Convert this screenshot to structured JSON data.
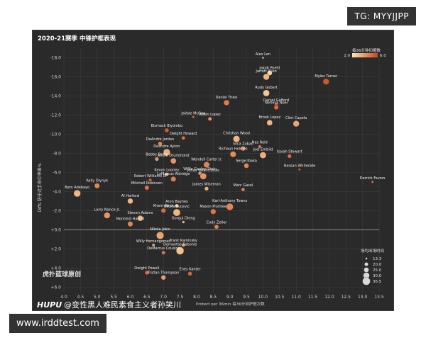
{
  "overlay": {
    "tag": "TG: MYYJJPP",
    "url": "www.irddtest.com"
  },
  "chart_data": {
    "type": "scatter",
    "title": "2020-21赛季 中锋护框表现",
    "xlabel": "Protect per 36min 每36分钟护框次数",
    "ylabel": "Diffs 防守对手命中率差%",
    "xlim": [
      4.0,
      13.5
    ],
    "ylim": [
      6.5,
      -19.0
    ],
    "x_ticks": [
      "4.0",
      "4.5",
      "5.0",
      "5.5",
      "6.0",
      "6.5",
      "7.0",
      "7.5",
      "8.0",
      "8.5",
      "9.0",
      "9.5",
      "10.0",
      "10.5",
      "11.0",
      "11.5",
      "12.0",
      "12.5",
      "13.0",
      "13.5"
    ],
    "y_ticks": [
      "-18.0",
      "-16.0",
      "-14.0",
      "-12.0",
      "-10.0",
      "-8.0",
      "-6.0",
      "-4.0",
      "-2.0",
      "+0.0",
      "+2.0",
      "+4.0",
      "+6.0"
    ],
    "color_legend": {
      "title": "每36分钟扣帽数",
      "min": "2.0",
      "max": "6.0",
      "colors": [
        "#ffe6b0",
        "#c9461a"
      ]
    },
    "size_legend": {
      "title": "场均出场时间",
      "values": [
        "13.3",
        "20.0",
        "25.0",
        "30.0",
        "36.5"
      ]
    },
    "watermark": "虎扑篮球原创",
    "footer_brand": "HUPU",
    "footer_author": "@变性黑人难民素食主义者孙笑川",
    "grid": true,
    "points": [
      {
        "name": "Alex Len",
        "x": 10.0,
        "y": -18.0,
        "c": 0.3,
        "s": 13.3
      },
      {
        "name": "Jakob Poeltl",
        "x": 10.2,
        "y": -16.4,
        "c": 0.1,
        "s": 25.0
      },
      {
        "name": "Jarrett Allen",
        "x": 10.1,
        "y": -16.0,
        "c": 0.3,
        "s": 30.0
      },
      {
        "name": "Myles Turner",
        "x": 11.9,
        "y": -15.5,
        "c": 0.9,
        "s": 30.0
      },
      {
        "name": "Rudy Gobert",
        "x": 10.1,
        "y": -14.3,
        "c": 0.2,
        "s": 31.0
      },
      {
        "name": "Daniel Gafford",
        "x": 10.4,
        "y": -13.1,
        "c": 0.9,
        "s": 20.0
      },
      {
        "name": "Daniel Theis",
        "x": 8.9,
        "y": -13.3,
        "c": 0.65,
        "s": 27.0
      },
      {
        "name": "Nerlens Noel",
        "x": 10.4,
        "y": -12.8,
        "c": 0.75,
        "s": 23.0
      },
      {
        "name": "JaVale McGee",
        "x": 7.9,
        "y": -11.8,
        "c": 0.8,
        "s": 15.0
      },
      {
        "name": "Robin Lopez",
        "x": 8.4,
        "y": -11.6,
        "c": 0.5,
        "s": 20.0
      },
      {
        "name": "Brook Lopez",
        "x": 10.2,
        "y": -11.2,
        "c": 0.3,
        "s": 28.0
      },
      {
        "name": "Clint Capela",
        "x": 11.0,
        "y": -11.1,
        "c": 0.4,
        "s": 30.0
      },
      {
        "name": "Bismack Biyombo",
        "x": 7.1,
        "y": -10.4,
        "c": 0.85,
        "s": 22.0
      },
      {
        "name": "Dwight Howard",
        "x": 7.6,
        "y": -9.6,
        "c": 0.75,
        "s": 20.0
      },
      {
        "name": "Christian Wood",
        "x": 9.2,
        "y": -9.5,
        "c": 0.3,
        "s": 32.0
      },
      {
        "name": "DeAndre Jordan",
        "x": 6.9,
        "y": -9.0,
        "c": 0.6,
        "s": 22.0
      },
      {
        "name": "Naz Reid",
        "x": 9.9,
        "y": -8.7,
        "c": 0.7,
        "s": 18.0
      },
      {
        "name": "Ivica Zubac",
        "x": 9.4,
        "y": -8.5,
        "c": 0.6,
        "s": 24.0
      },
      {
        "name": "Deandre Ayton",
        "x": 7.1,
        "y": -8.1,
        "c": 0.35,
        "s": 33.0
      },
      {
        "name": "Richaun Holmes",
        "x": 9.1,
        "y": -7.9,
        "c": 0.55,
        "s": 29.0
      },
      {
        "name": "Joel Embiid",
        "x": 10.0,
        "y": -7.8,
        "c": 0.35,
        "s": 31.0
      },
      {
        "name": "Isaiah Stewart",
        "x": 10.8,
        "y": -7.7,
        "c": 0.75,
        "s": 21.0
      },
      {
        "name": "Bobby Portis",
        "x": 6.8,
        "y": -7.4,
        "c": 0.5,
        "s": 21.0
      },
      {
        "name": "Andre Drummond",
        "x": 7.3,
        "y": -7.2,
        "c": 0.5,
        "s": 28.0
      },
      {
        "name": "Wendell Carter Jr.",
        "x": 8.3,
        "y": -6.8,
        "c": 0.6,
        "s": 29.0
      },
      {
        "name": "Serge Ibaka",
        "x": 9.5,
        "y": -6.7,
        "c": 0.6,
        "s": 25.0
      },
      {
        "name": "Hassan Whiteside",
        "x": 11.1,
        "y": -6.3,
        "c": 0.9,
        "s": 15.0
      },
      {
        "name": "Willie Cauley-Stein",
        "x": 8.1,
        "y": -5.9,
        "c": 0.5,
        "s": 19.0
      },
      {
        "name": "Jonas Valanciunas",
        "x": 8.2,
        "y": -5.6,
        "c": 0.5,
        "s": 31.0
      },
      {
        "name": "Kevon Looney",
        "x": 7.1,
        "y": -5.8,
        "c": 0.3,
        "s": 19.0
      },
      {
        "name": "LaMarcus Aldridge",
        "x": 7.3,
        "y": -5.3,
        "c": 0.65,
        "s": 26.0
      },
      {
        "name": "Robert Williams III",
        "x": 6.6,
        "y": -5.2,
        "c": 0.85,
        "s": 18.0
      },
      {
        "name": "Mitchell Robinson",
        "x": 6.5,
        "y": -4.4,
        "c": 0.7,
        "s": 23.0
      },
      {
        "name": "James Wiseman",
        "x": 8.3,
        "y": -4.3,
        "c": 0.35,
        "s": 21.0
      },
      {
        "name": "Marc Gasol",
        "x": 9.4,
        "y": -4.2,
        "c": 0.6,
        "s": 19.0
      },
      {
        "name": "Kelly Olynyk",
        "x": 5.0,
        "y": -4.6,
        "c": 0.6,
        "s": 26.0
      },
      {
        "name": "Derrick Favors",
        "x": 13.3,
        "y": -5.0,
        "c": 0.8,
        "s": 15.0
      },
      {
        "name": "Bam Adebayo",
        "x": 4.4,
        "y": -3.8,
        "c": 0.3,
        "s": 33.0
      },
      {
        "name": "Al Horford",
        "x": 6.0,
        "y": -3.0,
        "c": 0.3,
        "s": 27.0
      },
      {
        "name": "Aron Baynes",
        "x": 7.4,
        "y": -2.5,
        "c": 0.2,
        "s": 20.0
      },
      {
        "name": "Karl-Anthony Towns",
        "x": 9.0,
        "y": -2.4,
        "c": 0.6,
        "s": 33.0
      },
      {
        "name": "Khem Birch",
        "x": 7.0,
        "y": -2.0,
        "c": 0.75,
        "s": 24.0
      },
      {
        "name": "Nikola Vucevic",
        "x": 7.4,
        "y": -1.8,
        "c": 0.3,
        "s": 34.0
      },
      {
        "name": "Mason Plumlee",
        "x": 8.5,
        "y": -1.9,
        "c": 0.7,
        "s": 27.0
      },
      {
        "name": "Larry Nance Jr.",
        "x": 5.3,
        "y": -1.5,
        "c": 0.5,
        "s": 30.0
      },
      {
        "name": "Steven Adams",
        "x": 6.3,
        "y": -1.2,
        "c": 0.35,
        "s": 28.0
      },
      {
        "name": "Montrezl Harrell",
        "x": 6.0,
        "y": -0.6,
        "c": 0.6,
        "s": 26.0
      },
      {
        "name": "Gorgui Dieng",
        "x": 7.6,
        "y": -0.8,
        "c": 0.4,
        "s": 16.0
      },
      {
        "name": "Cody Zeller",
        "x": 8.6,
        "y": -0.3,
        "c": 0.6,
        "s": 22.0
      },
      {
        "name": "Nikola Jokic",
        "x": 6.9,
        "y": 0.6,
        "c": 0.4,
        "s": 35.0
      },
      {
        "name": "Willy Hernangomez",
        "x": 6.7,
        "y": 1.6,
        "c": 0.45,
        "s": 17.0
      },
      {
        "name": "Frank Kaminsky",
        "x": 7.6,
        "y": 1.6,
        "c": 0.6,
        "s": 20.0
      },
      {
        "name": "Domantas Sabonis",
        "x": 7.5,
        "y": 2.2,
        "c": 0.25,
        "s": 36.0
      },
      {
        "name": "DeMarcus Cousins",
        "x": 7.0,
        "y": 2.4,
        "c": 0.7,
        "s": 20.0
      },
      {
        "name": "Dwight Powell",
        "x": 6.5,
        "y": 4.5,
        "c": 0.75,
        "s": 21.0
      },
      {
        "name": "Enes Kanter",
        "x": 7.8,
        "y": 4.6,
        "c": 0.8,
        "s": 22.0
      },
      {
        "name": "Tristan Thompson",
        "x": 7.0,
        "y": 5.0,
        "c": 0.45,
        "s": 24.0
      }
    ]
  }
}
